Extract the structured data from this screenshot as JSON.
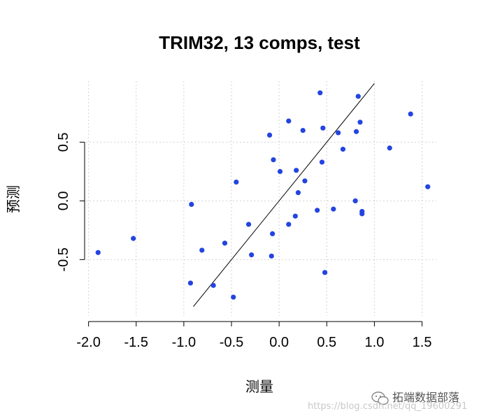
{
  "chart_data": {
    "type": "scatter",
    "title": "TRIM32, 13 comps, test",
    "xlabel": "测量",
    "ylabel": "预测",
    "xlim": [
      -2.1,
      1.65
    ],
    "ylim": [
      -0.98,
      1.02
    ],
    "x_ticks": [
      -2.0,
      -1.5,
      -1.0,
      -0.5,
      0.0,
      0.5,
      1.0,
      1.5
    ],
    "x_tick_labels": [
      "-2.0",
      "-1.5",
      "-1.0",
      "-0.5",
      "0.0",
      "0.5",
      "1.0",
      "1.5"
    ],
    "y_ticks": [
      -0.5,
      0.0,
      0.5
    ],
    "y_tick_labels": [
      "-0.5",
      "0.0",
      "0.5"
    ],
    "grid": true,
    "point_color": "#2344e0",
    "reference_line": {
      "type": "identity",
      "x": [
        -0.9,
        1.0
      ],
      "y": [
        -0.9,
        1.0
      ]
    },
    "points": [
      {
        "x": -1.9,
        "y": -0.44
      },
      {
        "x": -1.53,
        "y": -0.32
      },
      {
        "x": -0.93,
        "y": -0.7
      },
      {
        "x": -0.92,
        "y": -0.03
      },
      {
        "x": -0.81,
        "y": -0.42
      },
      {
        "x": -0.69,
        "y": -0.72
      },
      {
        "x": -0.57,
        "y": -0.36
      },
      {
        "x": -0.48,
        "y": -0.82
      },
      {
        "x": -0.45,
        "y": 0.16
      },
      {
        "x": -0.32,
        "y": -0.2
      },
      {
        "x": -0.29,
        "y": -0.46
      },
      {
        "x": -0.1,
        "y": 0.56
      },
      {
        "x": -0.08,
        "y": -0.47
      },
      {
        "x": -0.07,
        "y": -0.28
      },
      {
        "x": -0.06,
        "y": 0.35
      },
      {
        "x": 0.01,
        "y": 0.25
      },
      {
        "x": 0.1,
        "y": 0.68
      },
      {
        "x": 0.1,
        "y": -0.2
      },
      {
        "x": 0.17,
        "y": -0.13
      },
      {
        "x": 0.18,
        "y": 0.26
      },
      {
        "x": 0.2,
        "y": 0.07
      },
      {
        "x": 0.25,
        "y": 0.6
      },
      {
        "x": 0.27,
        "y": 0.17
      },
      {
        "x": 0.4,
        "y": -0.08
      },
      {
        "x": 0.43,
        "y": 0.92
      },
      {
        "x": 0.45,
        "y": 0.33
      },
      {
        "x": 0.46,
        "y": 0.62
      },
      {
        "x": 0.48,
        "y": -0.61
      },
      {
        "x": 0.57,
        "y": -0.07
      },
      {
        "x": 0.62,
        "y": 0.58
      },
      {
        "x": 0.67,
        "y": 0.44
      },
      {
        "x": 0.8,
        "y": 0.0
      },
      {
        "x": 0.81,
        "y": 0.59
      },
      {
        "x": 0.83,
        "y": 0.89
      },
      {
        "x": 0.85,
        "y": 0.67
      },
      {
        "x": 0.87,
        "y": -0.11
      },
      {
        "x": 0.87,
        "y": -0.09
      },
      {
        "x": 1.16,
        "y": 0.45
      },
      {
        "x": 1.38,
        "y": 0.74
      },
      {
        "x": 1.56,
        "y": 0.12
      }
    ]
  },
  "watermark": {
    "brand": "拓端数据部落",
    "url": "https://blog.csdn.net/qq_19600291",
    "icon": "wechat-icon"
  }
}
